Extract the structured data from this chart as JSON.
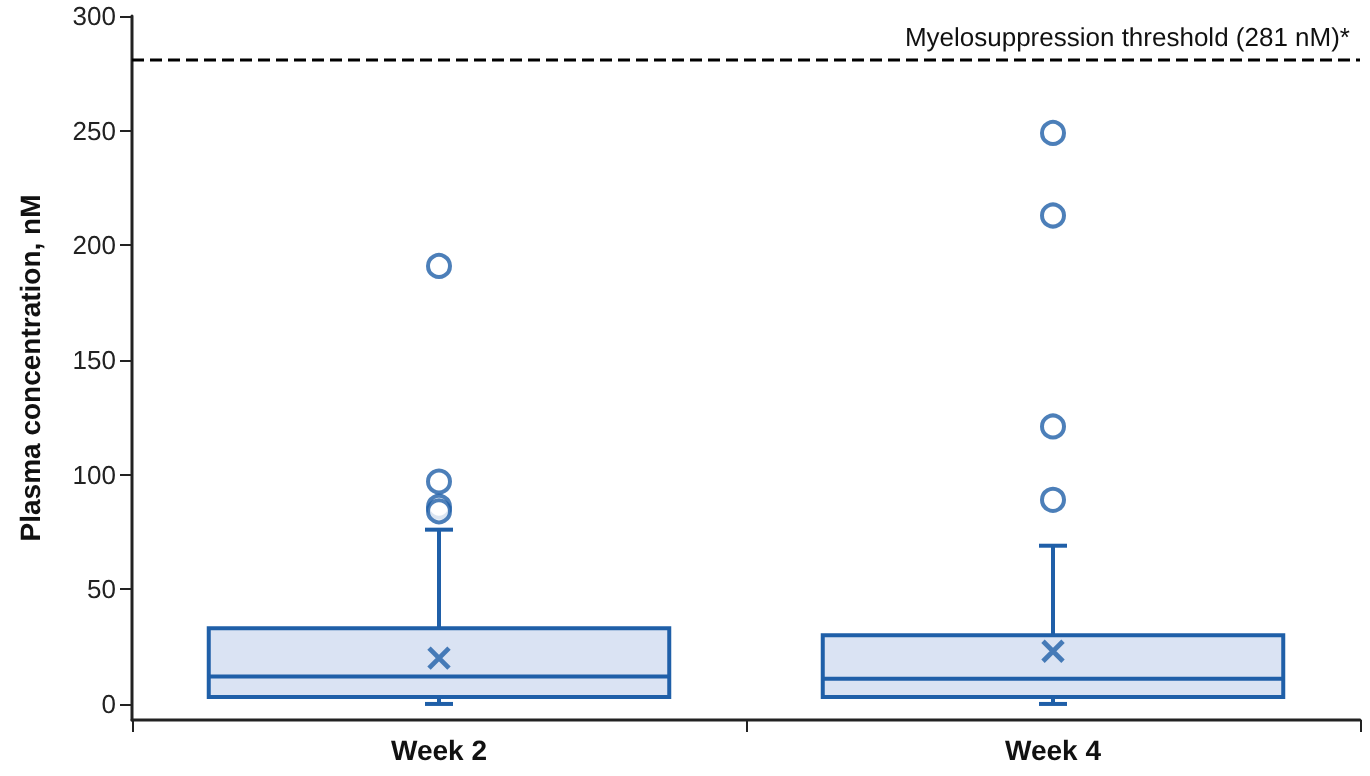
{
  "chart_data": {
    "type": "box",
    "ylabel": "Plasma concentration, nM",
    "categories": [
      "Week 2",
      "Week 4"
    ],
    "series": [
      {
        "color": "#1f5fa8",
        "boxes": [
          {
            "low": 0,
            "q1": 3,
            "median": 12,
            "q3": 33,
            "high": 76,
            "mean": 20,
            "outliers": [
              191,
              97,
              86,
              84
            ]
          },
          {
            "low": 0,
            "q1": 3,
            "median": 11,
            "q3": 30,
            "high": 69,
            "mean": 23,
            "outliers": [
              249,
              213,
              121,
              89
            ]
          }
        ]
      }
    ],
    "ylim": [
      -7,
      300
    ],
    "yticks": [
      0,
      50,
      100,
      150,
      200,
      250,
      300
    ],
    "grid": false,
    "ref_lines": [
      {
        "axis": "y",
        "value": 281,
        "label": "Myelosuppression threshold (281 nM)*",
        "color": "#000000",
        "line_style": "dashed"
      }
    ]
  }
}
